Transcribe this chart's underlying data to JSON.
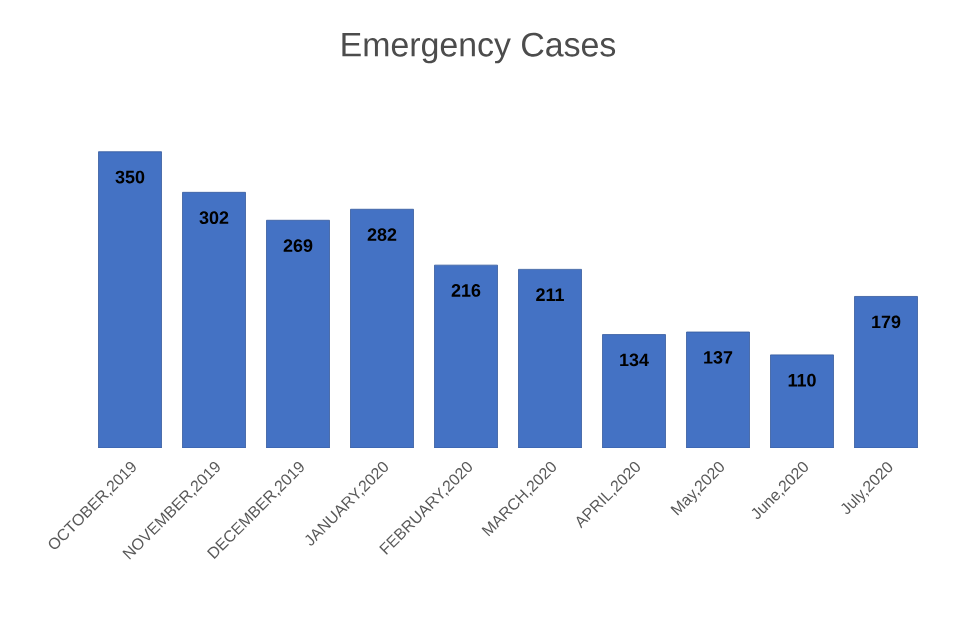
{
  "chart_data": {
    "type": "bar",
    "title": "Emergency Cases",
    "categories": [
      "OCTOBER,2019",
      "NOVEMBER,2019",
      "DECEMBER,2019",
      "JANUARY,2020",
      "FEBRUARY,2020",
      "MARCH,2020",
      "APRIL,2020",
      "May,2020",
      "June,2020",
      "July,2020"
    ],
    "values": [
      350,
      302,
      269,
      282,
      216,
      211,
      134,
      137,
      110,
      179
    ],
    "color": "#4472c4",
    "data_labels": true
  }
}
